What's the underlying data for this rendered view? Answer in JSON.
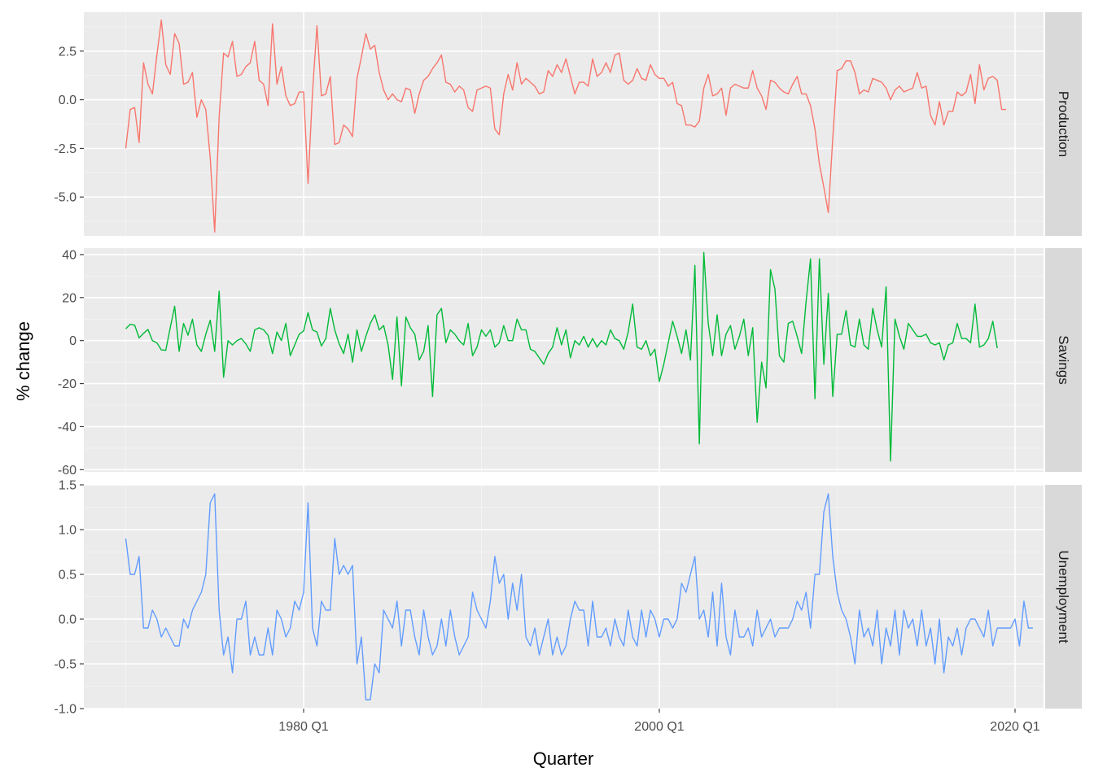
{
  "chart_data": {
    "type": "line",
    "facet": "rows",
    "xlabel": "Quarter",
    "ylabel": "% change",
    "x_range": [
      1970.0,
      2019.25
    ],
    "x_ticks": [
      {
        "value": 1980.0,
        "label": "1980 Q1"
      },
      {
        "value": 2000.0,
        "label": "2000 Q1"
      },
      {
        "value": 2020.0,
        "label": "2020 Q1"
      }
    ],
    "series": [
      {
        "name": "Production",
        "color": "#F8766D",
        "ylim": [
          -7.0,
          4.5
        ],
        "y_ticks": [
          -5.0,
          -2.5,
          0.0,
          2.5
        ],
        "y_tick_labels": [
          "-5.0",
          "-2.5",
          "0.0",
          "2.5"
        ],
        "values": [
          -2.5,
          -0.5,
          -0.4,
          -2.2,
          1.9,
          0.8,
          0.3,
          2.3,
          4.1,
          1.8,
          1.3,
          3.4,
          2.9,
          0.8,
          0.9,
          1.4,
          -0.9,
          0.0,
          -0.5,
          -3.0,
          -6.8,
          -0.9,
          2.4,
          2.2,
          3.0,
          1.2,
          1.3,
          1.7,
          1.9,
          3.0,
          1.0,
          0.8,
          -0.3,
          3.9,
          0.8,
          1.7,
          0.2,
          -0.3,
          -0.2,
          0.4,
          0.4,
          -4.3,
          0.4,
          3.8,
          0.2,
          0.3,
          1.2,
          -2.3,
          -2.2,
          -1.3,
          -1.5,
          -1.9,
          1.1,
          2.2,
          3.4,
          2.6,
          2.8,
          1.4,
          0.5,
          0.0,
          0.3,
          0.0,
          -0.1,
          0.6,
          0.5,
          -0.7,
          0.3,
          1.0,
          1.2,
          1.6,
          1.9,
          2.3,
          0.9,
          0.8,
          0.4,
          0.7,
          0.5,
          -0.4,
          -0.6,
          0.5,
          0.6,
          0.7,
          0.6,
          -1.5,
          -1.8,
          0.3,
          1.3,
          0.5,
          1.9,
          0.8,
          1.1,
          0.9,
          0.7,
          0.3,
          0.4,
          1.5,
          1.2,
          1.8,
          1.4,
          2.1,
          1.2,
          0.3,
          0.9,
          0.9,
          0.7,
          2.1,
          1.2,
          1.4,
          1.9,
          1.4,
          2.3,
          2.4,
          1.0,
          0.8,
          1.0,
          1.6,
          1.1,
          1.0,
          1.8,
          1.3,
          1.1,
          1.1,
          0.7,
          0.9,
          -0.2,
          -0.3,
          -1.3,
          -1.3,
          -1.4,
          -1.1,
          0.6,
          1.3,
          0.2,
          0.3,
          0.6,
          -0.8,
          0.6,
          0.8,
          0.7,
          0.6,
          0.6,
          1.5,
          0.6,
          0.2,
          -0.5,
          1.0,
          0.9,
          0.6,
          0.4,
          0.3,
          0.8,
          1.2,
          0.3,
          0.3,
          -0.3,
          -1.5,
          -3.3,
          -4.5,
          -5.8,
          -2.0,
          1.5,
          1.6,
          2.0,
          2.0,
          1.4,
          0.3,
          0.5,
          0.4,
          1.1,
          1.0,
          0.9,
          0.6,
          0.0,
          0.5,
          0.7,
          0.4,
          0.5,
          0.6,
          1.4,
          0.6,
          0.7,
          -0.8,
          -1.3,
          -0.1,
          -1.3,
          -0.6,
          -0.6,
          0.4,
          0.2,
          0.4,
          1.3,
          -0.2,
          1.8,
          0.5,
          1.1,
          1.2,
          1.0,
          -0.5,
          -0.5
        ]
      },
      {
        "name": "Savings",
        "color": "#00BA38",
        "ylim": [
          -61.0,
          43.0
        ],
        "y_ticks": [
          -60,
          -40,
          -20,
          0,
          20,
          40
        ],
        "y_tick_labels": [
          "-60",
          "-40",
          "-20",
          "0",
          "20",
          "40"
        ],
        "values": [
          5.5,
          7.6,
          7.2,
          1.3,
          3.4,
          5.2,
          0.0,
          -1.0,
          -4.3,
          -4.5,
          6.0,
          16.0,
          -5.0,
          8.0,
          2.5,
          10.0,
          -2.0,
          -5.0,
          3.0,
          9.5,
          -5.0,
          23.0,
          -17.0,
          0.0,
          -2.0,
          0.0,
          1.0,
          -1.5,
          -5.0,
          5.0,
          6.0,
          5.0,
          2.5,
          -6.0,
          4.0,
          0.0,
          8.0,
          -7.0,
          -2.0,
          3.0,
          4.5,
          13.0,
          5.0,
          4.0,
          -2.5,
          1.0,
          15.0,
          5.0,
          -1.5,
          -6.0,
          3.0,
          -10.0,
          5.0,
          -5.0,
          2.0,
          8.0,
          12.0,
          5.0,
          7.0,
          -2.0,
          -18.0,
          11.0,
          -21.0,
          11.0,
          6.0,
          3.0,
          -9.0,
          -5.0,
          7.0,
          -26.0,
          12.0,
          15.0,
          -1.0,
          5.0,
          3.0,
          0.0,
          -2.0,
          8.0,
          -7.0,
          -3.0,
          5.0,
          2.0,
          5.0,
          -3.0,
          -1.0,
          7.0,
          0.0,
          0.0,
          10.0,
          5.0,
          5.0,
          -4.0,
          -5.0,
          -8.0,
          -11.0,
          -6.0,
          -3.0,
          6.0,
          -2.0,
          5.0,
          -8.0,
          0.0,
          -2.0,
          2.0,
          -3.0,
          1.0,
          -3.0,
          0.0,
          -2.0,
          5.0,
          1.0,
          0.0,
          -4.0,
          4.0,
          17.0,
          -3.0,
          -4.0,
          0.0,
          -7.0,
          -4.0,
          -19.0,
          -11.0,
          -1.0,
          9.0,
          2.0,
          -6.0,
          5.0,
          -9.0,
          35.0,
          -48.0,
          41.0,
          8.0,
          -7.0,
          12.0,
          -7.0,
          3.0,
          7.0,
          -4.0,
          2.0,
          10.0,
          -7.0,
          6.0,
          -38.0,
          -10.0,
          -22.0,
          33.0,
          24.0,
          -7.0,
          -10.0,
          8.0,
          9.0,
          2.0,
          -6.0,
          18.0,
          38.0,
          -27.0,
          38.0,
          -11.0,
          22.0,
          -26.0,
          3.0,
          3.0,
          14.0,
          -2.0,
          -3.0,
          10.0,
          -2.0,
          -4.0,
          15.0,
          5.0,
          -3.0,
          25.0,
          -56.0,
          10.0,
          2.0,
          -4.0,
          8.0,
          5.0,
          2.0,
          2.0,
          3.0,
          -1.0,
          -2.0,
          -1.0,
          -9.0,
          -2.0,
          -1.0,
          8.0,
          1.0,
          1.0,
          -1.0,
          17.0,
          -3.0,
          -2.0,
          1.0,
          9.0,
          -3.5
        ]
      },
      {
        "name": "Unemployment",
        "color": "#619CFF",
        "ylim": [
          -1.0,
          1.5
        ],
        "y_ticks": [
          -1.0,
          -0.5,
          0.0,
          0.5,
          1.0,
          1.5
        ],
        "y_tick_labels": [
          "-1.0",
          "-0.5",
          "0.0",
          "0.5",
          "1.0",
          "1.5"
        ],
        "values": [
          0.9,
          0.5,
          0.5,
          0.7,
          -0.1,
          -0.1,
          0.1,
          0.0,
          -0.2,
          -0.1,
          -0.2,
          -0.3,
          -0.3,
          0.0,
          -0.1,
          0.1,
          0.2,
          0.3,
          0.5,
          1.3,
          1.4,
          0.1,
          -0.4,
          -0.2,
          -0.6,
          0.0,
          0.0,
          0.2,
          -0.4,
          -0.2,
          -0.4,
          -0.4,
          -0.1,
          -0.4,
          0.1,
          0.0,
          -0.2,
          -0.1,
          0.2,
          0.1,
          0.3,
          1.3,
          -0.1,
          -0.3,
          0.2,
          0.1,
          0.1,
          0.9,
          0.5,
          0.6,
          0.5,
          0.6,
          -0.5,
          -0.2,
          -0.9,
          -0.9,
          -0.5,
          -0.6,
          0.1,
          0.0,
          -0.1,
          0.2,
          -0.3,
          0.1,
          0.1,
          -0.2,
          -0.4,
          0.1,
          -0.2,
          -0.4,
          -0.3,
          0.0,
          -0.3,
          0.1,
          -0.2,
          -0.4,
          -0.3,
          -0.2,
          0.3,
          0.1,
          0.0,
          -0.1,
          0.2,
          0.7,
          0.4,
          0.5,
          0.0,
          0.4,
          0.1,
          0.5,
          -0.2,
          -0.3,
          -0.1,
          -0.4,
          -0.2,
          0.0,
          -0.4,
          -0.2,
          -0.4,
          -0.3,
          0.0,
          0.2,
          0.1,
          0.1,
          -0.3,
          0.2,
          -0.2,
          -0.2,
          -0.1,
          -0.3,
          0.0,
          -0.2,
          -0.3,
          0.1,
          -0.2,
          -0.3,
          0.1,
          -0.2,
          0.1,
          0.0,
          -0.2,
          0.0,
          0.0,
          -0.1,
          0.0,
          0.4,
          0.3,
          0.5,
          0.7,
          0.0,
          0.1,
          -0.2,
          0.3,
          -0.3,
          0.4,
          -0.2,
          -0.4,
          0.1,
          -0.2,
          -0.2,
          -0.1,
          -0.3,
          0.1,
          -0.2,
          -0.1,
          0.0,
          -0.2,
          -0.1,
          -0.1,
          -0.1,
          0.0,
          0.2,
          0.1,
          0.3,
          -0.1,
          0.5,
          0.5,
          1.2,
          1.4,
          0.7,
          0.3,
          0.1,
          0.0,
          -0.2,
          -0.5,
          0.1,
          -0.2,
          -0.1,
          -0.3,
          0.1,
          -0.5,
          -0.1,
          -0.3,
          0.1,
          -0.4,
          0.1,
          -0.1,
          0.0,
          -0.3,
          0.1,
          -0.3,
          -0.1,
          -0.5,
          0.0,
          -0.6,
          -0.2,
          -0.3,
          -0.1,
          -0.4,
          -0.1,
          0.0,
          0.0,
          -0.1,
          -0.2,
          0.1,
          -0.3,
          -0.1,
          -0.1,
          -0.1,
          -0.1,
          0.0,
          -0.3,
          0.2,
          -0.1,
          -0.1
        ]
      }
    ]
  }
}
